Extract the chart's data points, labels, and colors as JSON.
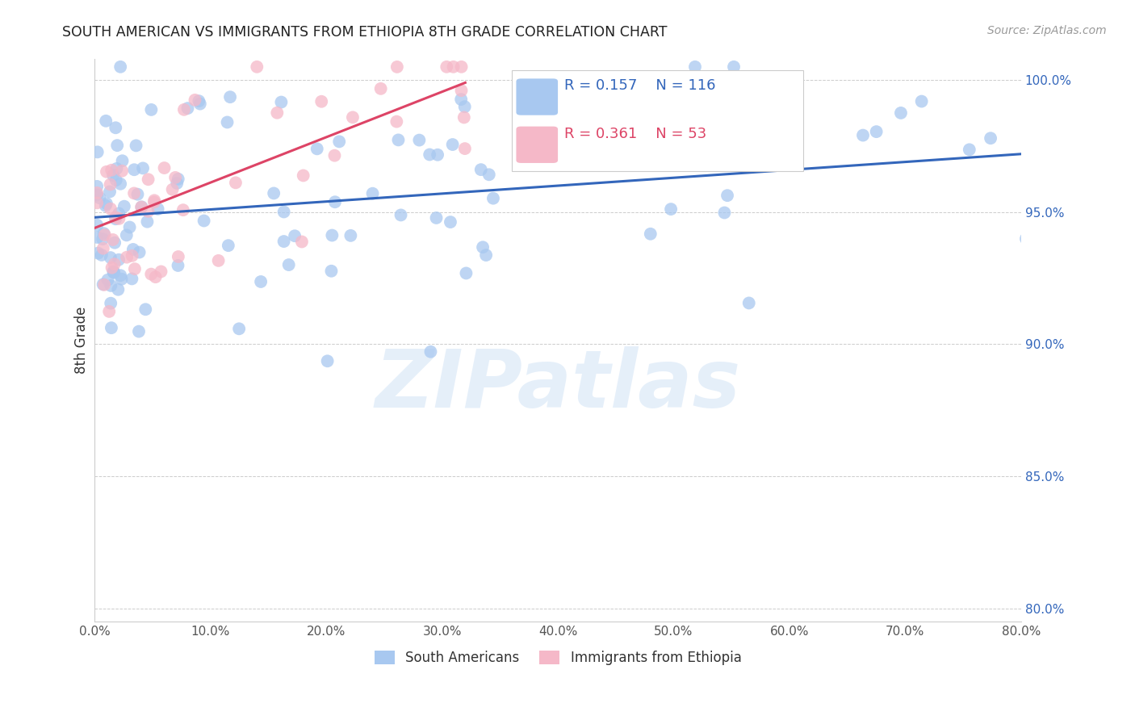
{
  "title": "SOUTH AMERICAN VS IMMIGRANTS FROM ETHIOPIA 8TH GRADE CORRELATION CHART",
  "source": "Source: ZipAtlas.com",
  "ylabel": "8th Grade",
  "watermark": "ZIPatlas",
  "blue_R": 0.157,
  "blue_N": 116,
  "pink_R": 0.361,
  "pink_N": 53,
  "blue_color": "#A8C8F0",
  "pink_color": "#F5B8C8",
  "blue_line_color": "#3366BB",
  "pink_line_color": "#DD4466",
  "legend_blue_label": "South Americans",
  "legend_pink_label": "Immigrants from Ethiopia",
  "xlim": [
    0.0,
    0.8
  ],
  "ylim": [
    0.795,
    1.008
  ],
  "xticks": [
    0.0,
    0.1,
    0.2,
    0.3,
    0.4,
    0.5,
    0.6,
    0.7,
    0.8
  ],
  "yticks_right": [
    0.8,
    0.85,
    0.9,
    0.95,
    1.0
  ],
  "background_color": "#ffffff",
  "blue_line_x0": 0.0,
  "blue_line_y0": 0.948,
  "blue_line_x1": 0.8,
  "blue_line_y1": 0.972,
  "pink_line_x0": 0.0,
  "pink_line_y0": 0.944,
  "pink_line_x1": 0.32,
  "pink_line_y1": 0.999
}
